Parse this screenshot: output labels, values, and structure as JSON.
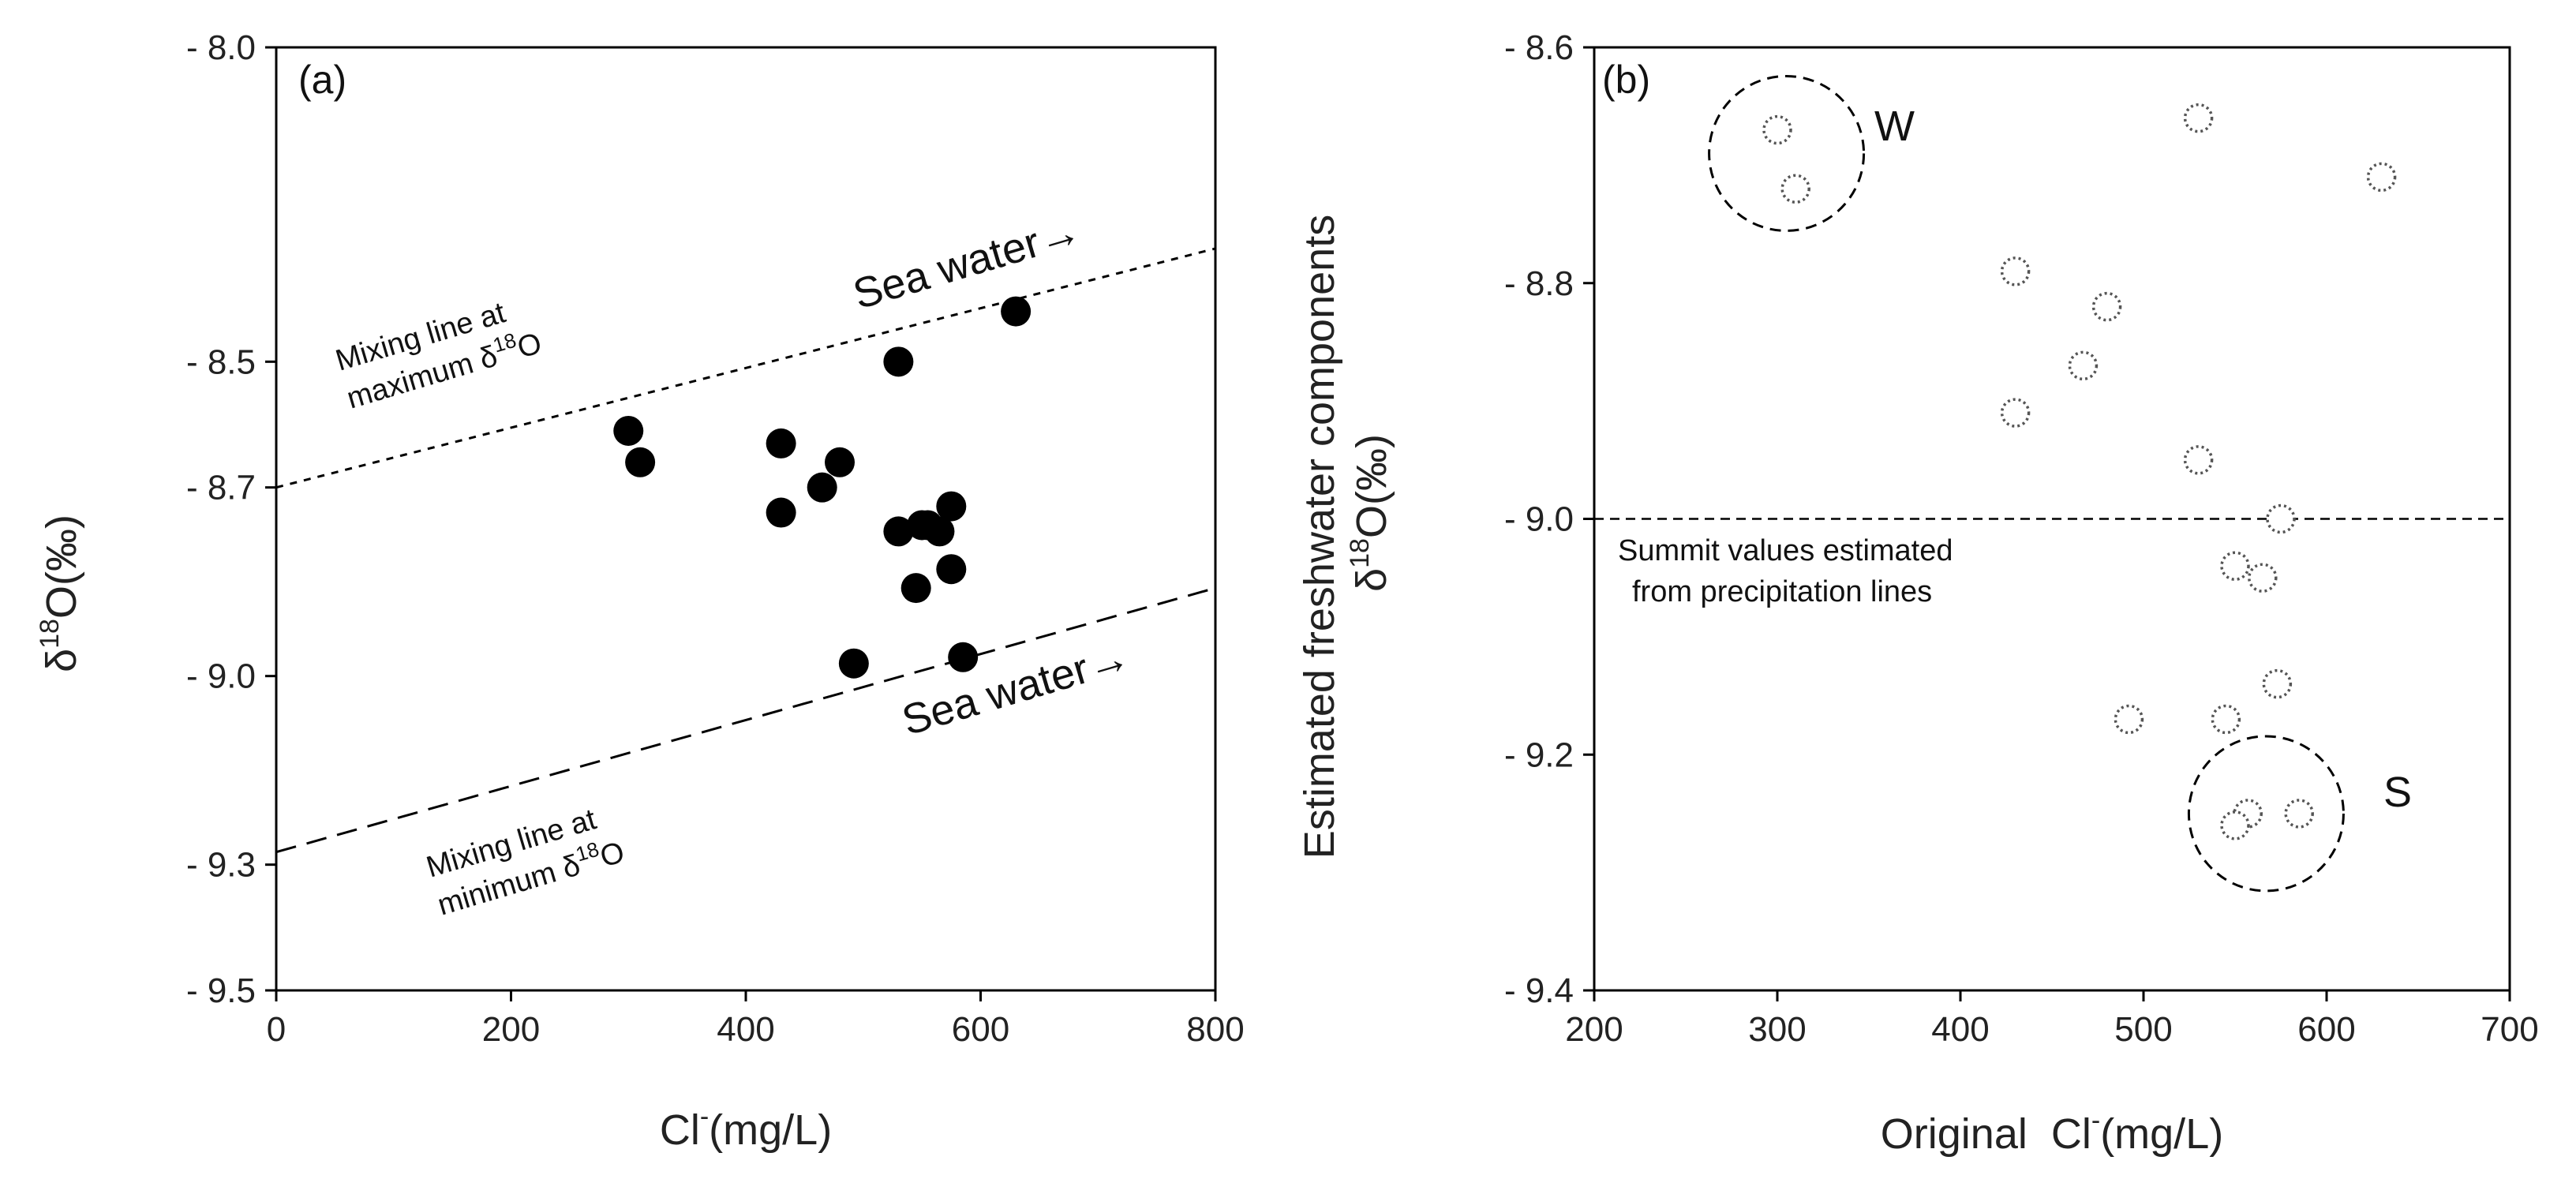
{
  "chart_data": [
    {
      "type": "scatter",
      "panel_label": "(a)",
      "xlabel_main": "Cl",
      "xlabel_sup": "-",
      "xlabel_rest": "(mg/L)",
      "ylabel_delta": "δ",
      "ylabel_sup": "18",
      "ylabel_rest": "O(‰)",
      "xlim": [
        0,
        800
      ],
      "ylim": [
        -9.5,
        -8.0
      ],
      "y_inverted": true,
      "x_ticks": [
        0,
        200,
        400,
        600,
        800
      ],
      "x_tick_labels": [
        "0",
        "200",
        "400",
        "600",
        "800"
      ],
      "y_ticks": [
        -8.0,
        -8.5,
        -8.7,
        -9.0,
        -9.3,
        -9.5
      ],
      "y_tick_labels": [
        "- 8.0",
        "- 8.5",
        "- 8.7",
        "- 9.0",
        "- 9.3",
        "- 9.5"
      ],
      "points": {
        "x": [
          300,
          310,
          430,
          430,
          465,
          480,
          530,
          530,
          545,
          550,
          555,
          565,
          575,
          575,
          585,
          492,
          630
        ],
        "y": [
          -8.61,
          -8.66,
          -8.63,
          -8.74,
          -8.7,
          -8.66,
          -8.5,
          -8.77,
          -8.86,
          -8.76,
          -8.76,
          -8.77,
          -8.73,
          -8.83,
          -8.97,
          -8.98,
          -8.42
        ]
      },
      "lines": [
        {
          "name": "max",
          "style": "dotted",
          "x": [
            0,
            800
          ],
          "y": [
            -8.7,
            -8.32
          ]
        },
        {
          "name": "min",
          "style": "dashed",
          "x": [
            0,
            800
          ],
          "y": [
            -9.28,
            -8.86
          ]
        }
      ],
      "annotations": {
        "max_line_1": "Mixing line at",
        "max_line_2a": "maximum δ",
        "max_line_2sup": "18",
        "max_line_2b": "O",
        "min_line_1": "Mixing line at",
        "min_line_2a": "minimum δ",
        "min_line_2sup": "18",
        "min_line_2b": "O",
        "sea_water_top": "Sea water→",
        "sea_water_bottom": "Sea water→"
      }
    },
    {
      "type": "scatter",
      "panel_label": "(b)",
      "xlabel_main": "Original  Cl",
      "xlabel_sup": "-",
      "xlabel_rest": "(mg/L)",
      "ylabel_line1": "Estimated  freshwater  components",
      "ylabel_delta": "δ",
      "ylabel_sup": "18",
      "ylabel_rest": "O(‰)",
      "xlim": [
        200,
        700
      ],
      "ylim": [
        -9.4,
        -8.6
      ],
      "y_inverted": true,
      "x_ticks": [
        200,
        300,
        400,
        500,
        600,
        700
      ],
      "x_tick_labels": [
        "200",
        "300",
        "400",
        "500",
        "600",
        "700"
      ],
      "y_ticks": [
        -8.6,
        -8.8,
        -9.0,
        -9.2,
        -9.4
      ],
      "y_tick_labels": [
        "- 8.6",
        "- 8.8",
        "- 9.0",
        "- 9.2",
        "- 9.4"
      ],
      "points": {
        "x": [
          300,
          310,
          530,
          630,
          430,
          480,
          467,
          430,
          530,
          575,
          550,
          565,
          573,
          492,
          545,
          557,
          585,
          550
        ],
        "y": [
          -8.67,
          -8.72,
          -8.66,
          -8.71,
          -8.79,
          -8.82,
          -8.87,
          -8.91,
          -8.95,
          -9.0,
          -9.04,
          -9.05,
          -9.14,
          -9.17,
          -9.17,
          -9.25,
          -9.25,
          -9.26
        ]
      },
      "reference_line": {
        "y": -9.0,
        "style": "dashed"
      },
      "annotations": {
        "ref_line_1": "Summit values estimated",
        "ref_line_2": "from precipitation lines",
        "group_W": "W",
        "group_S": "S"
      },
      "groups": [
        {
          "label": "W",
          "center_x": 305,
          "center_y": -8.69
        },
        {
          "label": "S",
          "center_x": 567,
          "center_y": -9.25
        }
      ]
    }
  ]
}
